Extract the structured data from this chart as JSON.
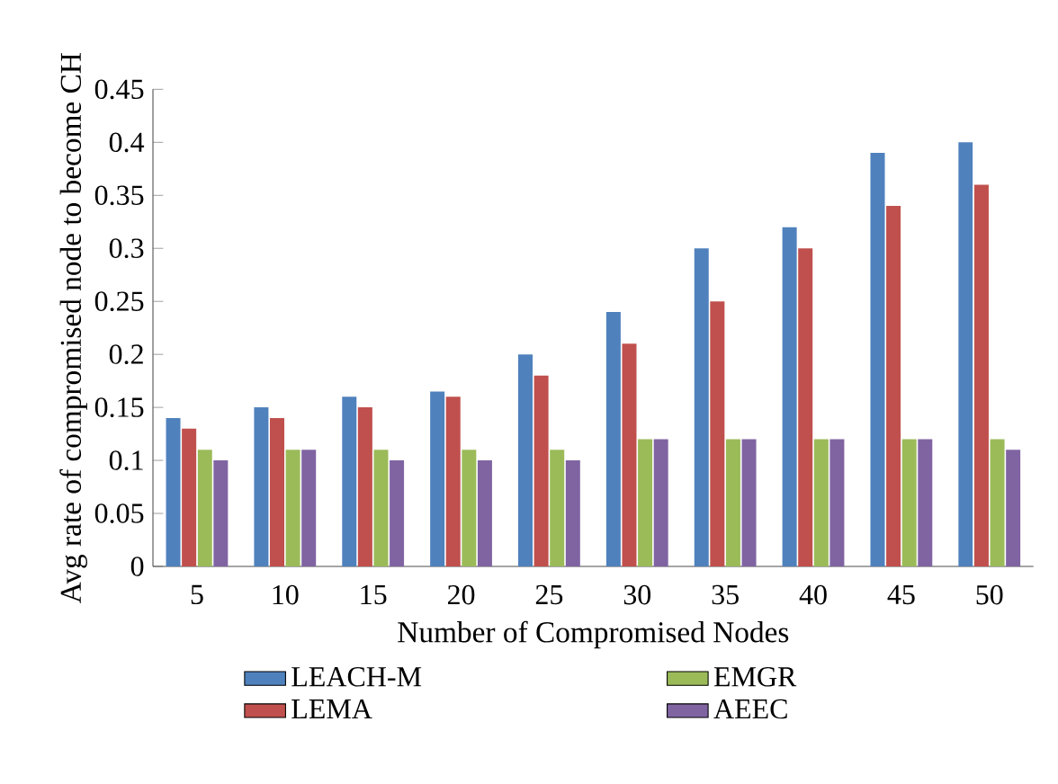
{
  "chart_data": {
    "type": "bar",
    "xlabel": "Number of Compromised Nodes",
    "ylabel": "Avg rate of compromised node to become CH",
    "categories": [
      "5",
      "10",
      "15",
      "20",
      "25",
      "30",
      "35",
      "40",
      "45",
      "50"
    ],
    "series": [
      {
        "name": "LEACH-M",
        "color": "#4f81bd",
        "values": [
          0.14,
          0.15,
          0.16,
          0.165,
          0.2,
          0.24,
          0.3,
          0.32,
          0.39,
          0.4
        ]
      },
      {
        "name": "LEMA",
        "color": "#c0504d",
        "values": [
          0.13,
          0.14,
          0.15,
          0.16,
          0.18,
          0.21,
          0.25,
          0.3,
          0.34,
          0.36
        ]
      },
      {
        "name": "EMGR",
        "color": "#9bbb59",
        "values": [
          0.11,
          0.11,
          0.11,
          0.11,
          0.11,
          0.12,
          0.12,
          0.12,
          0.12,
          0.12
        ]
      },
      {
        "name": "AEEC",
        "color": "#8064a2",
        "values": [
          0.1,
          0.11,
          0.1,
          0.1,
          0.1,
          0.12,
          0.12,
          0.12,
          0.12,
          0.11
        ]
      }
    ],
    "ylim": [
      0,
      0.45
    ],
    "yticks": [
      0,
      0.05,
      0.1,
      0.15,
      0.2,
      0.25,
      0.3,
      0.35,
      0.4,
      0.45
    ],
    "grid": false,
    "legend": "bottom"
  }
}
